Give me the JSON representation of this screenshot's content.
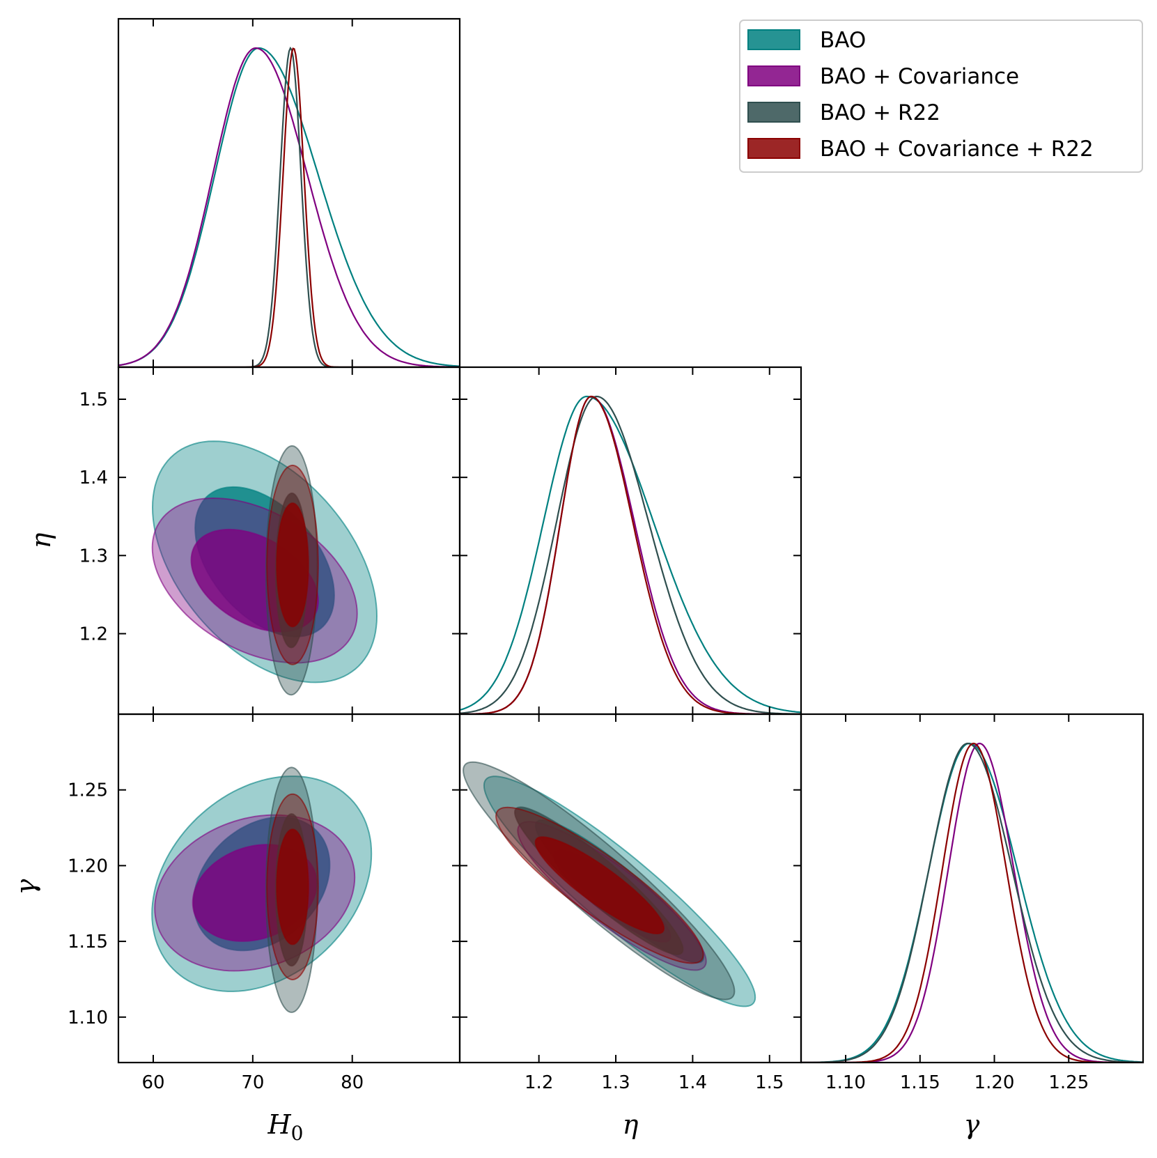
{
  "chart_data": {
    "type": "corner",
    "parameters": [
      {
        "key": "H0",
        "label": "H",
        "subscript": "0",
        "range": [
          56.5,
          90.8
        ],
        "ticks": [
          60,
          70,
          80
        ],
        "tick_labels": [
          "60",
          "70",
          "80"
        ]
      },
      {
        "key": "eta",
        "label": "η",
        "subscript": "",
        "range": [
          1.097,
          1.541
        ],
        "ticks": [
          1.2,
          1.3,
          1.4,
          1.5
        ],
        "tick_labels": [
          "1.2",
          "1.3",
          "1.4",
          "1.5"
        ],
        "y_tick_labels": [
          "1.2",
          "1.3",
          "1.4",
          "1.5"
        ]
      },
      {
        "key": "gamma",
        "label": "γ",
        "subscript": "",
        "range": [
          1.07,
          1.3
        ],
        "ticks": [
          1.1,
          1.15,
          1.2,
          1.25
        ],
        "tick_labels": [
          "1.10",
          "1.15",
          "1.20",
          "1.25"
        ]
      }
    ],
    "series": [
      {
        "name": "BAO",
        "color": "#008080",
        "marginals": {
          "H0": {
            "mean": 70.6,
            "sd": 4.4,
            "skew": 1.35
          },
          "eta": {
            "mean": 1.262,
            "sd": 0.056,
            "skew": 1.55
          },
          "gamma": {
            "mean": 1.183,
            "sd": 0.027,
            "skew": 1.2
          }
        },
        "contours": {
          "eta_H0": {
            "center": [
              71.2,
              1.292
            ],
            "sd": [
              4.6,
              0.063
            ],
            "corr": -0.45
          },
          "gamma_H0": {
            "center": [
              70.9,
              1.188
            ],
            "sd": [
              4.5,
              0.029
            ],
            "corr": 0.28
          },
          "gamma_eta": {
            "center": [
              1.305,
              1.183
            ],
            "sd": [
              0.072,
              0.031
            ],
            "corr": -0.92
          }
        }
      },
      {
        "name": "BAO + Covariance",
        "color": "#800080",
        "marginals": {
          "H0": {
            "mean": 70.3,
            "sd": 4.3,
            "skew": 1.2
          },
          "eta": {
            "mean": 1.268,
            "sd": 0.04,
            "skew": 1.4
          },
          "gamma": {
            "mean": 1.19,
            "sd": 0.021,
            "skew": 1.1
          }
        },
        "contours": {
          "eta_H0": {
            "center": [
              70.2,
              1.268
            ],
            "sd": [
              4.2,
              0.043
            ],
            "corr": -0.4
          },
          "gamma_H0": {
            "center": [
              70.2,
              1.182
            ],
            "sd": [
              4.1,
              0.021
            ],
            "corr": 0.2
          },
          "gamma_eta": {
            "center": [
              1.295,
              1.18
            ],
            "sd": [
              0.05,
              0.02
            ],
            "corr": -0.88
          }
        }
      },
      {
        "name": "BAO + R22",
        "color": "#2F4F4F",
        "marginals": {
          "H0": {
            "mean": 73.8,
            "sd": 1.05,
            "skew": 1.0
          },
          "eta": {
            "mean": 1.275,
            "sd": 0.052,
            "skew": 1.3
          },
          "gamma": {
            "mean": 1.182,
            "sd": 0.026,
            "skew": 1.15
          }
        },
        "contours": {
          "eta_H0": {
            "center": [
              73.9,
              1.281
            ],
            "sd": [
              1.05,
              0.065
            ],
            "corr": 0.02
          },
          "gamma_H0": {
            "center": [
              73.9,
              1.184
            ],
            "sd": [
              1.05,
              0.033
            ],
            "corr": 0.0
          },
          "gamma_eta": {
            "center": [
              1.278,
              1.19
            ],
            "sd": [
              0.072,
              0.032
            ],
            "corr": -0.93
          }
        }
      },
      {
        "name": "BAO + Covariance + R22",
        "color": "#8B0000",
        "marginals": {
          "H0": {
            "mean": 74.1,
            "sd": 1.05,
            "skew": 1.0
          },
          "eta": {
            "mean": 1.268,
            "sd": 0.04,
            "skew": 1.35
          },
          "gamma": {
            "mean": 1.186,
            "sd": 0.021,
            "skew": 1.05
          }
        },
        "contours": {
          "eta_H0": {
            "center": [
              74.0,
              1.288
            ],
            "sd": [
              1.05,
              0.052
            ],
            "corr": 0.0
          },
          "gamma_H0": {
            "center": [
              74.0,
              1.186
            ],
            "sd": [
              1.05,
              0.025
            ],
            "corr": 0.0
          },
          "gamma_eta": {
            "center": [
              1.279,
              1.187
            ],
            "sd": [
              0.055,
              0.021
            ],
            "corr": -0.89
          }
        }
      }
    ],
    "contour_levels": [
      "68%",
      "95%"
    ],
    "legend_position": "top-right"
  }
}
